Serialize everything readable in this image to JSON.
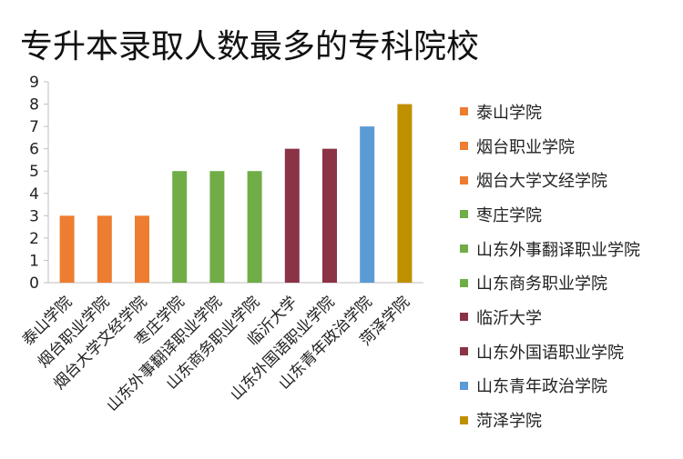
{
  "chart_data": {
    "type": "bar",
    "title": "专升本录取人数最多的专科院校",
    "categories": [
      "泰山学院",
      "烟台职业学院",
      "烟台大学文经学院",
      "枣庄学院",
      "山东外事翻译职业学院",
      "山东商务职业学院",
      "临沂大学",
      "山东外国语职业学院",
      "山东青年政治学院",
      "菏泽学院"
    ],
    "values": [
      3,
      3,
      3,
      5,
      5,
      5,
      6,
      6,
      7,
      8
    ],
    "colors": [
      "#ED7D31",
      "#ED7D31",
      "#ED7D31",
      "#70AD47",
      "#70AD47",
      "#70AD47",
      "#8B3246",
      "#8B3246",
      "#5B9BD5",
      "#BF9000"
    ],
    "yticks": [
      "0",
      "1",
      "2",
      "3",
      "4",
      "5",
      "6",
      "7",
      "8",
      "9"
    ],
    "ylim": [
      0,
      9
    ],
    "xlabel": "",
    "ylabel": "",
    "grid": false,
    "legend_position": "right"
  }
}
